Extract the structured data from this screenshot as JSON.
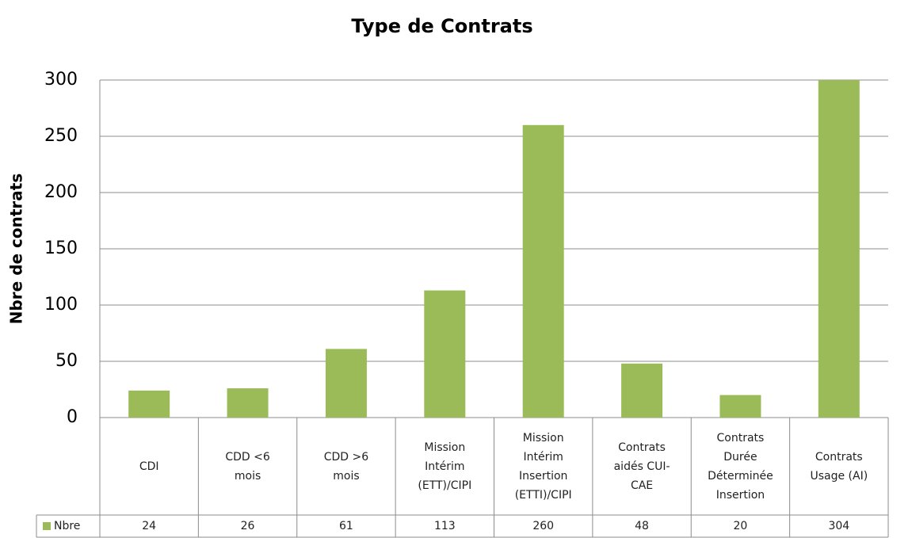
{
  "chart_data": {
    "type": "bar",
    "title": "Type de Contrats",
    "ylabel": "Nbre de contrats",
    "categories": [
      "CDI",
      "CDD <6\nmois",
      "CDD >6\nmois",
      "Mission\nIntérim\n(ETT)/CIPI",
      "Mission\nIntérim\nInsertion\n(ETTI)/CIPI",
      "Contrats\naidés CUI-\nCAE",
      "Contrats\nDurée\nDéterminée\nInsertion",
      "Contrats\nUsage (AI)"
    ],
    "series": [
      {
        "name": "Nbre",
        "color": "#9bbb59",
        "values": [
          24,
          26,
          61,
          113,
          260,
          48,
          20,
          304
        ]
      }
    ],
    "ylim": [
      0,
      300
    ],
    "yticks": [
      0,
      50,
      100,
      150,
      200,
      250,
      300
    ],
    "grid": true
  }
}
